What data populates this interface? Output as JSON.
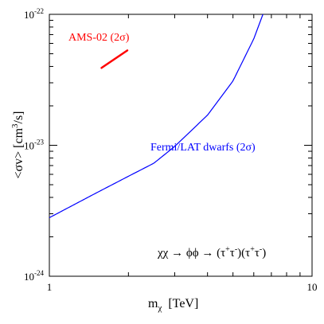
{
  "chart_data": {
    "type": "line",
    "xlabel": "m",
    "xlabel_sub": "χ",
    "xlabel_unit": "[TeV]",
    "ylabel": "<σv>  [cm",
    "ylabel_sup": "3",
    "ylabel_unit": "/s]",
    "x_scale": "log",
    "y_scale": "log",
    "xlim": [
      1,
      10
    ],
    "ylim": [
      1e-24,
      1e-22
    ],
    "x_tick_labels": [
      {
        "value": 1,
        "label": "1"
      },
      {
        "value": 10,
        "label": "10"
      }
    ],
    "y_tick_labels": [
      {
        "value": 1e-24,
        "base": "10",
        "exp": "-24"
      },
      {
        "value": 1e-23,
        "base": "10",
        "exp": "-23"
      },
      {
        "value": 1e-22,
        "base": "10",
        "exp": "-22"
      }
    ],
    "series": [
      {
        "name": "Fermi/LAT dwarfs (2σ)",
        "color": "#0000ff",
        "x": [
          1.0,
          1.5,
          2.0,
          2.5,
          3.0,
          4.0,
          5.0,
          6.0,
          6.5
        ],
        "y": [
          2.8e-24,
          4.3e-24,
          5.8e-24,
          7.3e-24,
          9.8e-24,
          1.7e-23,
          3.1e-23,
          6.5e-23,
          1e-22
        ]
      },
      {
        "name": "AMS-02 (2σ)",
        "color": "#ff0000",
        "x": [
          1.58,
          1.98
        ],
        "y": [
          3.9e-23,
          5.3e-23
        ]
      }
    ],
    "annotations": [
      {
        "text": "χχ → ϕϕ → (τ",
        "sup1": "+",
        "mid1": "τ",
        "sup2": "-",
        "mid2": ")(τ",
        "sup3": "+",
        "mid3": "τ",
        "sup4": "-",
        "end": ")"
      }
    ],
    "grid": false
  }
}
